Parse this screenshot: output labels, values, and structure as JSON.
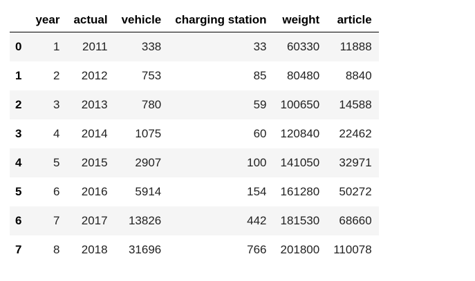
{
  "table": {
    "index_header": "",
    "columns": [
      "year",
      "actual",
      "vehicle",
      "charging station",
      "weight",
      "article"
    ],
    "rows": [
      {
        "index": "0",
        "values": [
          "1",
          "2011",
          "338",
          "33",
          "60330",
          "11888"
        ]
      },
      {
        "index": "1",
        "values": [
          "2",
          "2012",
          "753",
          "85",
          "80480",
          "8840"
        ]
      },
      {
        "index": "2",
        "values": [
          "3",
          "2013",
          "780",
          "59",
          "100650",
          "14588"
        ]
      },
      {
        "index": "3",
        "values": [
          "4",
          "2014",
          "1075",
          "60",
          "120840",
          "22462"
        ]
      },
      {
        "index": "4",
        "values": [
          "5",
          "2015",
          "2907",
          "100",
          "141050",
          "32971"
        ]
      },
      {
        "index": "5",
        "values": [
          "6",
          "2016",
          "5914",
          "154",
          "161280",
          "50272"
        ]
      },
      {
        "index": "6",
        "values": [
          "7",
          "2017",
          "13826",
          "442",
          "181530",
          "68660"
        ]
      },
      {
        "index": "7",
        "values": [
          "8",
          "2018",
          "31696",
          "766",
          "201800",
          "110078"
        ]
      }
    ]
  },
  "colors": {
    "striped_row": "#f5f5f5",
    "header_border": "#000000"
  }
}
